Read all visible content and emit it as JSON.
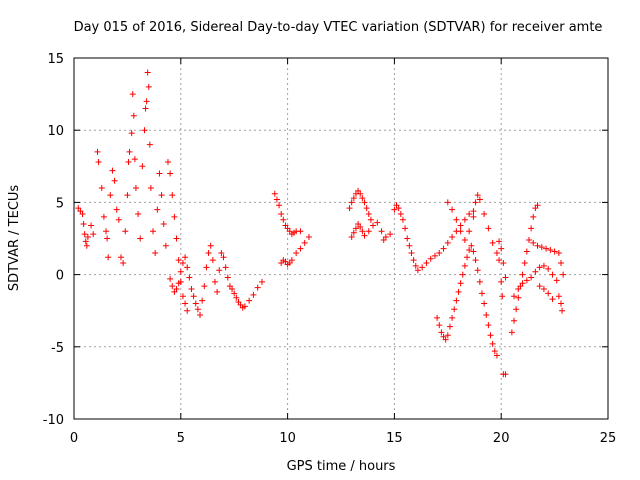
{
  "chart_data": {
    "type": "scatter",
    "title": "Day 015 of 2016, Sidereal Day-to-day VTEC variation (SDTVAR) for receiver amte",
    "xlabel": "GPS time / hours",
    "ylabel": "SDTVAR / TECUs",
    "xlim": [
      0,
      25
    ],
    "ylim": [
      -10,
      15
    ],
    "xticks": [
      0,
      5,
      10,
      15,
      20,
      25
    ],
    "yticks": [
      -10,
      -5,
      0,
      5,
      10,
      15
    ],
    "grid": true,
    "marker": "+",
    "color": "#ff0000",
    "series": [
      {
        "name": "SDTVAR",
        "points": [
          [
            0.2,
            4.6
          ],
          [
            0.3,
            4.4
          ],
          [
            0.4,
            4.2
          ],
          [
            0.45,
            3.5
          ],
          [
            0.5,
            2.8
          ],
          [
            0.55,
            2.3
          ],
          [
            0.6,
            2.0
          ],
          [
            0.65,
            2.6
          ],
          [
            0.8,
            3.4
          ],
          [
            0.9,
            2.8
          ],
          [
            1.1,
            8.5
          ],
          [
            1.15,
            7.8
          ],
          [
            1.3,
            6.0
          ],
          [
            1.4,
            4.0
          ],
          [
            1.5,
            3.0
          ],
          [
            1.55,
            2.5
          ],
          [
            1.6,
            1.2
          ],
          [
            1.7,
            5.5
          ],
          [
            1.8,
            7.2
          ],
          [
            1.9,
            6.5
          ],
          [
            2.0,
            4.5
          ],
          [
            2.1,
            3.8
          ],
          [
            2.2,
            1.2
          ],
          [
            2.3,
            0.8
          ],
          [
            2.4,
            3.0
          ],
          [
            2.5,
            5.5
          ],
          [
            2.55,
            7.8
          ],
          [
            2.6,
            8.5
          ],
          [
            2.7,
            9.8
          ],
          [
            2.75,
            12.5
          ],
          [
            2.8,
            11.0
          ],
          [
            2.85,
            8.0
          ],
          [
            2.9,
            6.0
          ],
          [
            3.0,
            4.2
          ],
          [
            3.1,
            2.5
          ],
          [
            3.2,
            7.5
          ],
          [
            3.3,
            10.0
          ],
          [
            3.35,
            11.5
          ],
          [
            3.4,
            12.0
          ],
          [
            3.45,
            14.0
          ],
          [
            3.5,
            13.0
          ],
          [
            3.55,
            9.0
          ],
          [
            3.6,
            6.0
          ],
          [
            3.7,
            3.0
          ],
          [
            3.8,
            1.5
          ],
          [
            3.9,
            4.5
          ],
          [
            4.0,
            7.0
          ],
          [
            4.1,
            5.5
          ],
          [
            4.2,
            3.5
          ],
          [
            4.3,
            2.0
          ],
          [
            4.4,
            7.8
          ],
          [
            4.5,
            7.0
          ],
          [
            4.6,
            5.5
          ],
          [
            4.7,
            4.0
          ],
          [
            4.8,
            2.5
          ],
          [
            4.9,
            1.0
          ],
          [
            5.0,
            -0.5
          ],
          [
            5.1,
            -1.5
          ],
          [
            5.2,
            -2.0
          ],
          [
            5.3,
            -2.5
          ],
          [
            4.5,
            -0.3
          ],
          [
            4.6,
            -0.8
          ],
          [
            4.7,
            -1.2
          ],
          [
            4.8,
            -1.0
          ],
          [
            4.9,
            -0.6
          ],
          [
            5.0,
            0.2
          ],
          [
            5.1,
            0.8
          ],
          [
            5.2,
            1.2
          ],
          [
            5.3,
            0.5
          ],
          [
            5.4,
            -0.2
          ],
          [
            5.5,
            -1.0
          ],
          [
            5.6,
            -1.5
          ],
          [
            5.7,
            -2.0
          ],
          [
            5.8,
            -2.4
          ],
          [
            5.9,
            -2.8
          ],
          [
            6.0,
            -1.8
          ],
          [
            6.1,
            -0.8
          ],
          [
            6.2,
            0.5
          ],
          [
            6.3,
            1.5
          ],
          [
            6.4,
            2.0
          ],
          [
            6.5,
            1.0
          ],
          [
            6.6,
            -0.5
          ],
          [
            6.7,
            -1.2
          ],
          [
            6.8,
            0.3
          ],
          [
            6.9,
            1.5
          ],
          [
            7.0,
            1.2
          ],
          [
            7.1,
            0.5
          ],
          [
            7.2,
            -0.2
          ],
          [
            7.3,
            -0.8
          ],
          [
            7.4,
            -1.0
          ],
          [
            7.5,
            -1.3
          ],
          [
            7.6,
            -1.6
          ],
          [
            7.7,
            -1.9
          ],
          [
            7.8,
            -2.1
          ],
          [
            7.9,
            -2.3
          ],
          [
            8.0,
            -2.2
          ],
          [
            8.2,
            -1.8
          ],
          [
            8.4,
            -1.4
          ],
          [
            8.6,
            -0.9
          ],
          [
            8.8,
            -0.5
          ],
          [
            9.4,
            5.6
          ],
          [
            9.5,
            5.2
          ],
          [
            9.6,
            4.8
          ],
          [
            9.7,
            4.2
          ],
          [
            9.8,
            3.8
          ],
          [
            9.9,
            3.4
          ],
          [
            10.0,
            3.2
          ],
          [
            10.1,
            3.0
          ],
          [
            10.2,
            2.8
          ],
          [
            10.3,
            2.9
          ],
          [
            10.4,
            3.0
          ],
          [
            10.6,
            3.0
          ],
          [
            9.7,
            0.8
          ],
          [
            9.8,
            1.0
          ],
          [
            9.9,
            0.9
          ],
          [
            10.0,
            0.7
          ],
          [
            10.1,
            0.8
          ],
          [
            10.2,
            1.0
          ],
          [
            10.4,
            1.5
          ],
          [
            10.6,
            1.8
          ],
          [
            10.8,
            2.2
          ],
          [
            11.0,
            2.6
          ],
          [
            12.9,
            4.6
          ],
          [
            13.0,
            5.0
          ],
          [
            13.1,
            5.3
          ],
          [
            13.2,
            5.6
          ],
          [
            13.3,
            5.8
          ],
          [
            13.4,
            5.6
          ],
          [
            13.5,
            5.3
          ],
          [
            13.6,
            5.0
          ],
          [
            13.7,
            4.6
          ],
          [
            13.8,
            4.2
          ],
          [
            13.9,
            3.8
          ],
          [
            13.0,
            2.6
          ],
          [
            13.1,
            2.9
          ],
          [
            13.2,
            3.2
          ],
          [
            13.3,
            3.5
          ],
          [
            13.4,
            3.3
          ],
          [
            13.5,
            3.0
          ],
          [
            13.6,
            2.7
          ],
          [
            13.8,
            3.0
          ],
          [
            14.0,
            3.4
          ],
          [
            14.2,
            3.6
          ],
          [
            14.4,
            3.0
          ],
          [
            14.5,
            2.4
          ],
          [
            14.6,
            2.6
          ],
          [
            14.8,
            2.8
          ],
          [
            15.0,
            4.5
          ],
          [
            15.1,
            4.8
          ],
          [
            15.2,
            4.6
          ],
          [
            15.3,
            4.2
          ],
          [
            15.4,
            3.8
          ],
          [
            15.5,
            3.2
          ],
          [
            15.6,
            2.5
          ],
          [
            15.7,
            2.0
          ],
          [
            15.8,
            1.5
          ],
          [
            15.9,
            1.0
          ],
          [
            16.0,
            0.6
          ],
          [
            16.1,
            0.3
          ],
          [
            16.3,
            0.5
          ],
          [
            16.5,
            0.8
          ],
          [
            16.7,
            1.1
          ],
          [
            16.9,
            1.3
          ],
          [
            17.1,
            1.5
          ],
          [
            17.3,
            1.8
          ],
          [
            17.5,
            2.2
          ],
          [
            17.7,
            2.6
          ],
          [
            17.9,
            3.0
          ],
          [
            18.1,
            3.4
          ],
          [
            18.3,
            3.8
          ],
          [
            18.5,
            4.2
          ],
          [
            18.7,
            4.4
          ],
          [
            17.0,
            -3.0
          ],
          [
            17.1,
            -3.5
          ],
          [
            17.2,
            -4.0
          ],
          [
            17.3,
            -4.3
          ],
          [
            17.4,
            -4.5
          ],
          [
            17.5,
            -4.2
          ],
          [
            17.6,
            -3.6
          ],
          [
            17.7,
            -3.0
          ],
          [
            17.8,
            -2.4
          ],
          [
            17.9,
            -1.8
          ],
          [
            18.0,
            -1.2
          ],
          [
            18.1,
            -0.6
          ],
          [
            18.2,
            0.0
          ],
          [
            18.3,
            0.6
          ],
          [
            18.4,
            1.2
          ],
          [
            18.5,
            1.7
          ],
          [
            18.6,
            2.0
          ],
          [
            18.7,
            1.6
          ],
          [
            18.8,
            1.0
          ],
          [
            18.9,
            0.3
          ],
          [
            19.0,
            -0.5
          ],
          [
            19.1,
            -1.3
          ],
          [
            19.2,
            -2.0
          ],
          [
            19.3,
            -2.8
          ],
          [
            19.4,
            -3.5
          ],
          [
            19.5,
            -4.2
          ],
          [
            19.6,
            -4.8
          ],
          [
            19.7,
            -5.3
          ],
          [
            19.8,
            -5.6
          ],
          [
            17.5,
            5.0
          ],
          [
            17.7,
            4.5
          ],
          [
            17.9,
            3.8
          ],
          [
            18.1,
            3.0
          ],
          [
            18.3,
            2.4
          ],
          [
            18.5,
            3.0
          ],
          [
            18.7,
            4.0
          ],
          [
            18.8,
            5.0
          ],
          [
            18.9,
            5.5
          ],
          [
            19.0,
            5.2
          ],
          [
            19.2,
            4.2
          ],
          [
            19.4,
            3.2
          ],
          [
            19.6,
            2.2
          ],
          [
            19.8,
            1.5
          ],
          [
            19.9,
            1.0
          ],
          [
            20.0,
            -0.5
          ],
          [
            20.05,
            -1.5
          ],
          [
            20.1,
            -6.9
          ],
          [
            20.2,
            -6.9
          ],
          [
            19.9,
            2.3
          ],
          [
            20.0,
            1.8
          ],
          [
            20.1,
            0.8
          ],
          [
            20.2,
            -0.2
          ],
          [
            20.5,
            -4.0
          ],
          [
            20.6,
            -3.2
          ],
          [
            20.7,
            -2.4
          ],
          [
            20.8,
            -1.6
          ],
          [
            20.9,
            -0.8
          ],
          [
            21.0,
            0.0
          ],
          [
            21.1,
            0.8
          ],
          [
            21.2,
            1.6
          ],
          [
            21.3,
            2.4
          ],
          [
            21.4,
            3.2
          ],
          [
            21.5,
            4.0
          ],
          [
            21.6,
            4.6
          ],
          [
            21.7,
            4.8
          ],
          [
            20.6,
            -1.5
          ],
          [
            20.8,
            -1.0
          ],
          [
            21.0,
            -0.6
          ],
          [
            21.2,
            -0.4
          ],
          [
            21.4,
            -0.2
          ],
          [
            21.6,
            0.2
          ],
          [
            21.8,
            0.5
          ],
          [
            22.0,
            0.6
          ],
          [
            22.2,
            0.4
          ],
          [
            22.4,
            0.0
          ],
          [
            22.6,
            -0.4
          ],
          [
            21.5,
            2.2
          ],
          [
            21.7,
            2.0
          ],
          [
            21.9,
            1.9
          ],
          [
            22.1,
            1.8
          ],
          [
            22.3,
            1.7
          ],
          [
            22.5,
            1.6
          ],
          [
            22.7,
            1.5
          ],
          [
            22.8,
            0.8
          ],
          [
            22.9,
            0.0
          ],
          [
            22.7,
            -1.5
          ],
          [
            22.8,
            -2.0
          ],
          [
            22.85,
            -2.5
          ],
          [
            21.8,
            -0.8
          ],
          [
            22.0,
            -1.0
          ],
          [
            22.2,
            -1.3
          ],
          [
            22.4,
            -1.7
          ]
        ]
      }
    ]
  }
}
